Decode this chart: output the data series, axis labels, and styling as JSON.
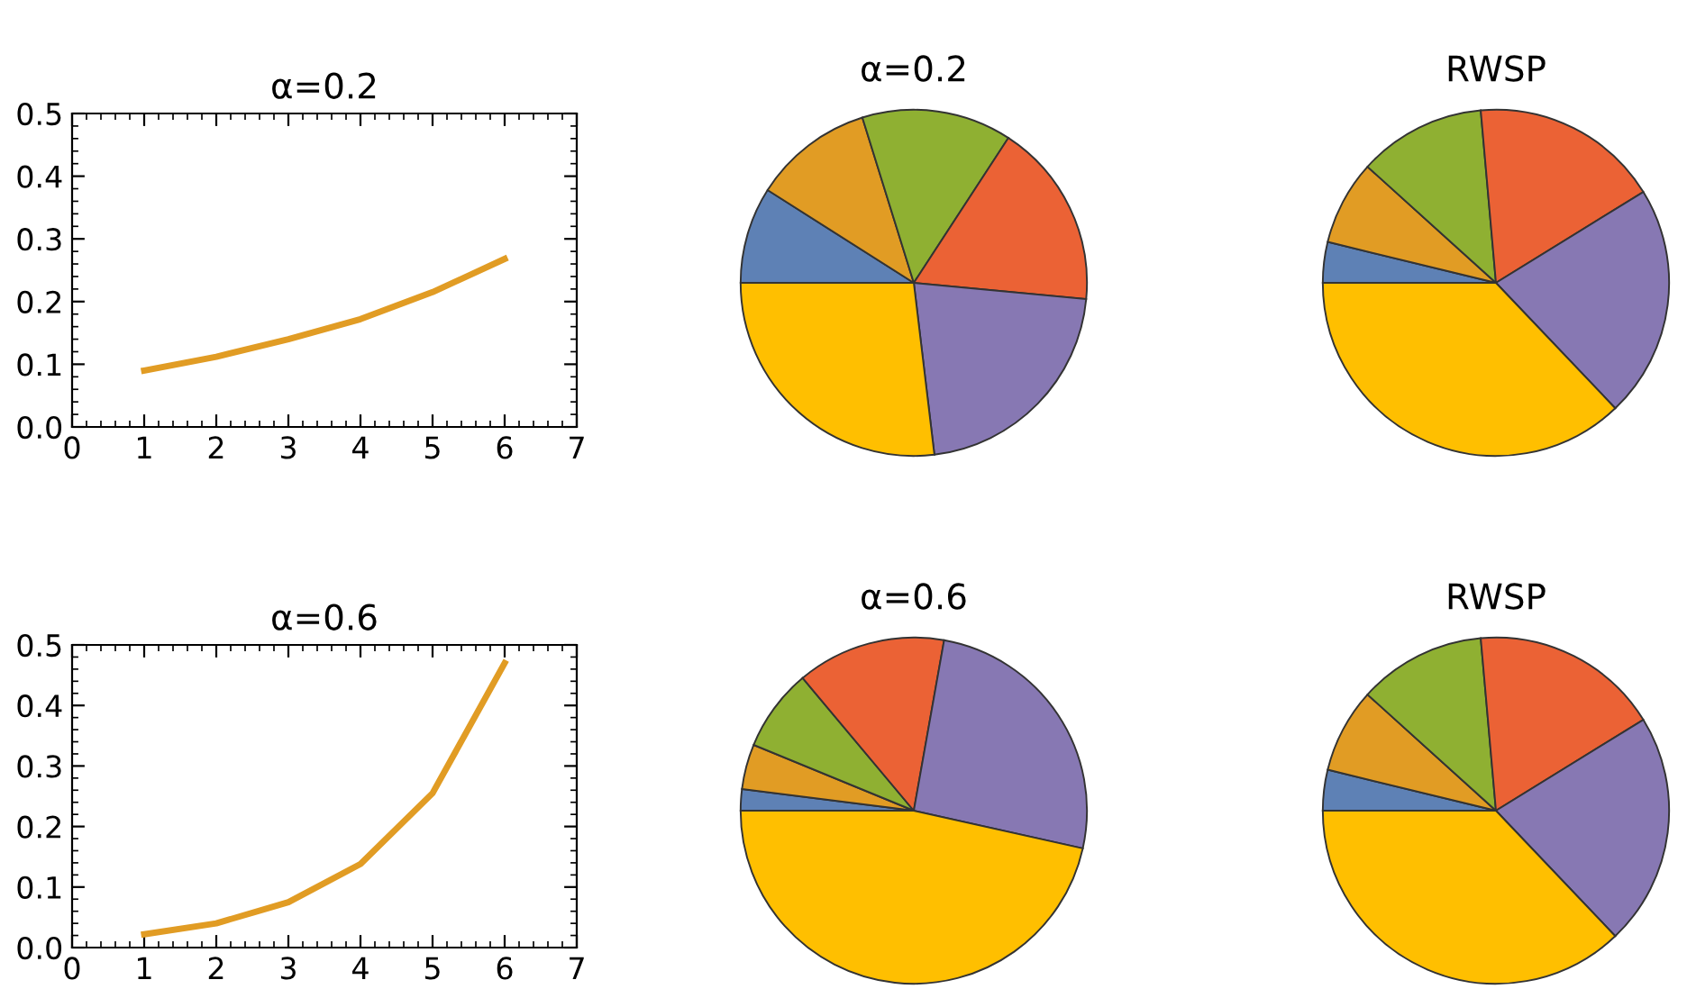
{
  "chart_data": [
    {
      "type": "line",
      "title": "α=0.2",
      "x": [
        1,
        2,
        3,
        4,
        5,
        6
      ],
      "series": [
        {
          "color": "#e19c24",
          "values": [
            0.09,
            0.112,
            0.14,
            0.172,
            0.215,
            0.268
          ]
        }
      ],
      "xlim": [
        0,
        7
      ],
      "ylim": [
        0,
        0.5
      ],
      "xticks": [
        0,
        1,
        2,
        3,
        4,
        5,
        6,
        7
      ],
      "yticks": [
        {
          "value": 0,
          "label": "0.0"
        },
        0.1,
        0.2,
        0.3,
        0.4,
        0.5
      ],
      "grid": false,
      "legend": false
    },
    {
      "type": "pie",
      "title": "α=0.2",
      "categories": [
        null,
        null,
        null,
        null,
        null,
        null
      ],
      "values": [
        9.0,
        11.2,
        14.0,
        17.3,
        21.6,
        26.9
      ],
      "colors": [
        "#5e81b5",
        "#e19c24",
        "#8fb032",
        "#eb6235",
        "#8778b3",
        "#ffbf00"
      ]
    },
    {
      "type": "pie",
      "title": "RWSP",
      "categories": [
        null,
        null,
        null,
        null,
        null,
        null
      ],
      "values": [
        3.8,
        7.9,
        11.9,
        17.6,
        21.7,
        37.1
      ],
      "colors": [
        "#5e81b5",
        "#e19c24",
        "#8fb032",
        "#eb6235",
        "#8778b3",
        "#ffbf00"
      ]
    },
    {
      "type": "line",
      "title": "α=0.6",
      "x": [
        1,
        2,
        3,
        4,
        5,
        6
      ],
      "series": [
        {
          "color": "#e19c24",
          "values": [
            0.022,
            0.04,
            0.075,
            0.138,
            0.255,
            0.47
          ]
        }
      ],
      "xlim": [
        0,
        7
      ],
      "ylim": [
        0,
        0.5
      ],
      "xticks": [
        0,
        1,
        2,
        3,
        4,
        5,
        6,
        7
      ],
      "yticks": [
        {
          "value": 0,
          "label": "0.0"
        },
        0.1,
        0.2,
        0.3,
        0.4,
        0.5
      ],
      "grid": false,
      "legend": false
    },
    {
      "type": "pie",
      "title": "α=0.6",
      "categories": [
        null,
        null,
        null,
        null,
        null,
        null
      ],
      "values": [
        2.0,
        4.2,
        7.7,
        13.9,
        25.7,
        46.5
      ],
      "colors": [
        "#5e81b5",
        "#e19c24",
        "#8fb032",
        "#eb6235",
        "#8778b3",
        "#ffbf00"
      ]
    },
    {
      "type": "pie",
      "title": "RWSP",
      "categories": [
        null,
        null,
        null,
        null,
        null,
        null
      ],
      "values": [
        3.8,
        7.9,
        11.9,
        17.6,
        21.7,
        37.1
      ],
      "colors": [
        "#5e81b5",
        "#e19c24",
        "#8fb032",
        "#eb6235",
        "#8778b3",
        "#ffbf00"
      ]
    }
  ]
}
